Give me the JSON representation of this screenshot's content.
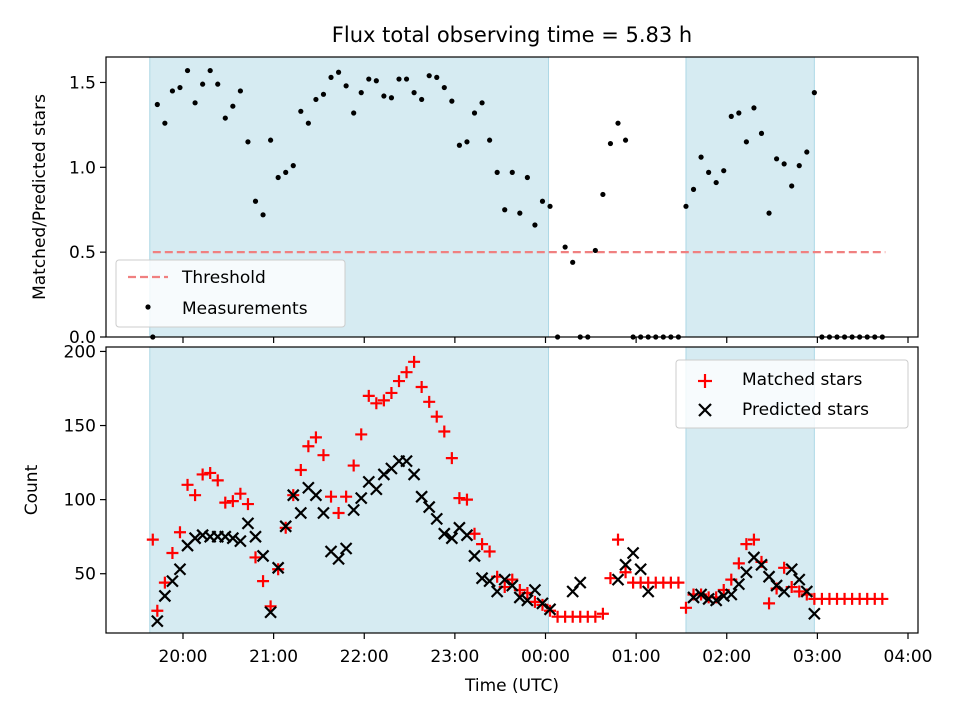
{
  "title": "Flux total observing time = 5.83 h",
  "xlabel": "Time (UTC)",
  "colors": {
    "shade": "#add8e6",
    "threshold": "#f08080",
    "matched": "#ff0000",
    "predicted": "#000000",
    "points": "#000000"
  },
  "x_ticks": [
    "20:00",
    "21:00",
    "22:00",
    "23:00",
    "00:00",
    "01:00",
    "02:00",
    "03:00",
    "04:00"
  ],
  "chart_data": [
    {
      "type": "scatter",
      "ylabel": "Matched/Predicted stars",
      "ylim": [
        0,
        1.65
      ],
      "y_ticks": [
        "0.0",
        "0.5",
        "1.0",
        "1.5"
      ],
      "shaded_intervals": [
        [
          "19:38",
          "00:02"
        ],
        [
          "01:33",
          "02:58"
        ]
      ],
      "legend": {
        "position": "lower-left",
        "entries": [
          "Threshold",
          "Measurements"
        ]
      },
      "threshold": {
        "name": "Threshold",
        "value": 0.5,
        "x_range": [
          "19:40",
          "03:45"
        ]
      },
      "series": [
        {
          "name": "Measurements",
          "x": [
            "19:40",
            "19:43",
            "19:48",
            "19:53",
            "19:58",
            "20:03",
            "20:08",
            "20:13",
            "20:18",
            "20:23",
            "20:28",
            "20:33",
            "20:38",
            "20:43",
            "20:48",
            "20:53",
            "20:58",
            "21:03",
            "21:08",
            "21:13",
            "21:18",
            "21:23",
            "21:28",
            "21:33",
            "21:38",
            "21:43",
            "21:48",
            "21:53",
            "21:58",
            "22:03",
            "22:08",
            "22:13",
            "22:18",
            "22:23",
            "22:28",
            "22:33",
            "22:38",
            "22:43",
            "22:48",
            "22:53",
            "22:58",
            "23:03",
            "23:08",
            "23:13",
            "23:18",
            "23:23",
            "23:28",
            "23:33",
            "23:38",
            "23:43",
            "23:48",
            "23:53",
            "23:58",
            "00:03",
            "00:08",
            "00:13",
            "00:18",
            "00:23",
            "00:28",
            "00:33",
            "00:38",
            "00:43",
            "00:48",
            "00:53",
            "00:58",
            "01:03",
            "01:08",
            "01:13",
            "01:18",
            "01:23",
            "01:28",
            "01:33",
            "01:38",
            "01:43",
            "01:48",
            "01:53",
            "01:58",
            "02:03",
            "02:08",
            "02:13",
            "02:18",
            "02:23",
            "02:28",
            "02:33",
            "02:38",
            "02:43",
            "02:48",
            "02:53",
            "02:58",
            "03:03",
            "03:08",
            "03:13",
            "03:18",
            "03:23",
            "03:28",
            "03:33",
            "03:38",
            "03:43"
          ],
          "y": [
            0.0,
            1.37,
            1.26,
            1.45,
            1.47,
            1.57,
            1.38,
            1.49,
            1.57,
            1.49,
            1.29,
            1.36,
            1.45,
            1.15,
            0.8,
            0.72,
            1.16,
            0.94,
            0.97,
            1.01,
            1.33,
            1.26,
            1.4,
            1.43,
            1.53,
            1.56,
            1.48,
            1.32,
            1.44,
            1.52,
            1.51,
            1.42,
            1.41,
            1.52,
            1.52,
            1.44,
            1.4,
            1.54,
            1.53,
            1.47,
            1.39,
            1.13,
            1.15,
            1.32,
            1.38,
            1.16,
            0.97,
            0.75,
            0.97,
            0.73,
            0.94,
            0.66,
            0.8,
            0.77,
            0.0,
            0.53,
            0.44,
            0.0,
            0.0,
            0.51,
            0.84,
            1.14,
            1.26,
            1.16,
            0.0,
            0.0,
            0.0,
            0.0,
            0.0,
            0.0,
            0.0,
            0.77,
            0.87,
            1.06,
            0.97,
            0.91,
            0.98,
            1.3,
            1.32,
            1.15,
            1.35,
            1.2,
            0.73,
            1.05,
            1.02,
            0.89,
            1.01,
            1.09,
            1.44,
            0.0,
            0.0,
            0.0,
            0.0,
            0.0,
            0.0,
            0.0,
            0.0,
            0.0
          ]
        }
      ]
    },
    {
      "type": "scatter",
      "ylabel": "Count",
      "ylim": [
        10,
        203
      ],
      "y_ticks": [
        "50",
        "100",
        "150",
        "200"
      ],
      "shaded_intervals": [
        [
          "19:38",
          "00:02"
        ],
        [
          "01:33",
          "02:58"
        ]
      ],
      "legend": {
        "position": "upper-right",
        "entries": [
          "Matched stars",
          "Predicted stars"
        ]
      },
      "series": [
        {
          "name": "Matched stars",
          "marker": "plus",
          "x": [
            "19:40",
            "19:43",
            "19:48",
            "19:53",
            "19:58",
            "20:03",
            "20:08",
            "20:13",
            "20:18",
            "20:23",
            "20:28",
            "20:33",
            "20:38",
            "20:43",
            "20:48",
            "20:53",
            "20:58",
            "21:03",
            "21:08",
            "21:13",
            "21:18",
            "21:23",
            "21:28",
            "21:33",
            "21:38",
            "21:43",
            "21:48",
            "21:53",
            "21:58",
            "22:03",
            "22:08",
            "22:13",
            "22:18",
            "22:23",
            "22:28",
            "22:33",
            "22:38",
            "22:43",
            "22:48",
            "22:53",
            "22:58",
            "23:03",
            "23:08",
            "23:13",
            "23:18",
            "23:23",
            "23:28",
            "23:33",
            "23:38",
            "23:43",
            "23:48",
            "23:53",
            "23:58",
            "00:03",
            "00:08",
            "00:13",
            "00:18",
            "00:23",
            "00:28",
            "00:33",
            "00:38",
            "00:43",
            "00:48",
            "00:53",
            "00:58",
            "01:03",
            "01:08",
            "01:13",
            "01:18",
            "01:23",
            "01:28",
            "01:33",
            "01:38",
            "01:43",
            "01:48",
            "01:53",
            "01:58",
            "02:03",
            "02:08",
            "02:13",
            "02:18",
            "02:23",
            "02:28",
            "02:33",
            "02:38",
            "02:43",
            "02:48",
            "02:53",
            "02:58",
            "03:03",
            "03:08",
            "03:13",
            "03:18",
            "03:23",
            "03:28",
            "03:33",
            "03:38",
            "03:43"
          ],
          "y": [
            73,
            25,
            44,
            64,
            78,
            110,
            103,
            117,
            118,
            113,
            98,
            99,
            104,
            97,
            61,
            45,
            28,
            53,
            81,
            103,
            120,
            136,
            142,
            130,
            102,
            91,
            102,
            123,
            144,
            170,
            165,
            167,
            172,
            180,
            186,
            193,
            176,
            166,
            156,
            146,
            128,
            101,
            100,
            77,
            70,
            65,
            48,
            41,
            46,
            39,
            37,
            31,
            29,
            25,
            21,
            21,
            21,
            21,
            21,
            21,
            23,
            47,
            73,
            51,
            44,
            44,
            44,
            44,
            44,
            44,
            44,
            27,
            36,
            36,
            34,
            34,
            39,
            46,
            57,
            70,
            73,
            58,
            30,
            40,
            54,
            41,
            38,
            36,
            33,
            33,
            33,
            33,
            33,
            33,
            33,
            33,
            33,
            33
          ]
        },
        {
          "name": "Predicted stars",
          "marker": "x",
          "x": [
            "19:43",
            "19:48",
            "19:53",
            "19:58",
            "20:03",
            "20:08",
            "20:13",
            "20:18",
            "20:23",
            "20:28",
            "20:33",
            "20:38",
            "20:43",
            "20:48",
            "20:53",
            "20:58",
            "21:03",
            "21:08",
            "21:13",
            "21:18",
            "21:23",
            "21:28",
            "21:33",
            "21:38",
            "21:43",
            "21:48",
            "21:53",
            "21:58",
            "22:03",
            "22:08",
            "22:13",
            "22:18",
            "22:23",
            "22:28",
            "22:33",
            "22:38",
            "22:43",
            "22:48",
            "22:53",
            "22:58",
            "23:03",
            "23:08",
            "23:13",
            "23:18",
            "23:23",
            "23:28",
            "23:33",
            "23:38",
            "23:43",
            "23:48",
            "23:53",
            "23:58",
            "00:03",
            "00:18",
            "00:23",
            "00:48",
            "00:53",
            "00:58",
            "01:03",
            "01:08",
            "01:38",
            "01:43",
            "01:48",
            "01:53",
            "01:58",
            "02:03",
            "02:08",
            "02:13",
            "02:18",
            "02:23",
            "02:28",
            "02:33",
            "02:38",
            "02:43",
            "02:48",
            "02:53",
            "02:58"
          ],
          "y": [
            18,
            35,
            45,
            53,
            69,
            74,
            76,
            75,
            75,
            75,
            74,
            72,
            84,
            75,
            62,
            24,
            54,
            82,
            103,
            91,
            108,
            103,
            91,
            65,
            60,
            67,
            93,
            101,
            112,
            107,
            117,
            121,
            126,
            126,
            117,
            102,
            95,
            87,
            77,
            74,
            81,
            76,
            62,
            47,
            45,
            38,
            46,
            42,
            34,
            32,
            39,
            30,
            26,
            38,
            44,
            46,
            56,
            64,
            53,
            38,
            34,
            36,
            33,
            32,
            35,
            36,
            43,
            51,
            61,
            56,
            48,
            42,
            38,
            53,
            46,
            38,
            23
          ]
        }
      ]
    }
  ]
}
